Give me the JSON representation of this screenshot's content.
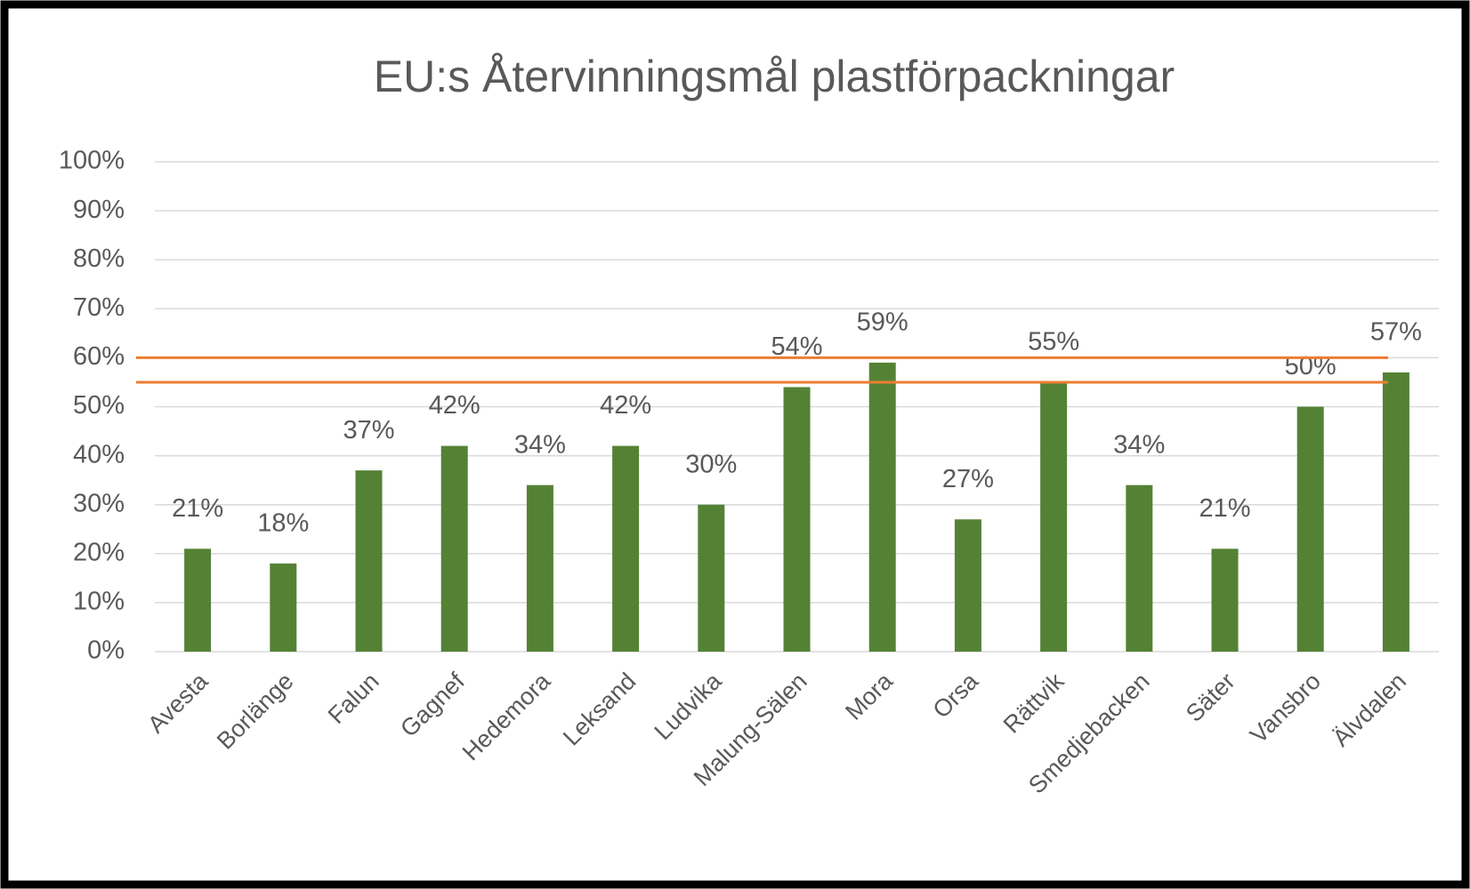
{
  "chart_data": {
    "type": "bar",
    "title": "EU:s Återvinningsmål  plastförpackningar",
    "categories": [
      "Avesta",
      "Borlänge",
      "Falun",
      "Gagnef",
      "Hedemora",
      "Leksand",
      "Ludvika",
      "Malung-Sälen",
      "Mora",
      "Orsa",
      "Rättvik",
      "Smedjebacken",
      "Säter",
      "Vansbro",
      "Älvdalen"
    ],
    "values": [
      21,
      18,
      37,
      42,
      34,
      42,
      30,
      54,
      59,
      27,
      55,
      34,
      21,
      50,
      57
    ],
    "value_labels": [
      "21%",
      "18%",
      "37%",
      "42%",
      "34%",
      "42%",
      "30%",
      "54%",
      "59%",
      "27%",
      "55%",
      "34%",
      "21%",
      "50%",
      "57%"
    ],
    "color": "#548235",
    "ylim": [
      0,
      100
    ],
    "yticks": [
      {
        "value": 0,
        "label": "0%"
      },
      {
        "value": 10,
        "label": "10%"
      },
      {
        "value": 20,
        "label": "20%"
      },
      {
        "value": 30,
        "label": "30%"
      },
      {
        "value": 40,
        "label": "40%"
      },
      {
        "value": 50,
        "label": "50%"
      },
      {
        "value": 60,
        "label": "60%"
      },
      {
        "value": 70,
        "label": "70%"
      },
      {
        "value": 80,
        "label": "80%"
      },
      {
        "value": 90,
        "label": "90%"
      },
      {
        "value": 100,
        "label": "100%"
      }
    ],
    "grid": true,
    "reference_lines": [
      60,
      55
    ],
    "reference_color": "#ed7d31"
  }
}
